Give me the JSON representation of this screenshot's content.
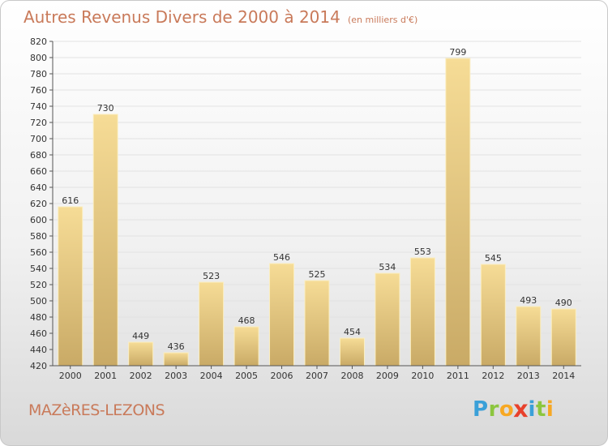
{
  "header": {
    "title": "Autres Revenus Divers de 2000 à 2014",
    "subtitle": "(en milliers d'€)"
  },
  "footer": {
    "commune": "MAZèRES-LEZONS",
    "brand": "Proxiti",
    "brand_letters": [
      {
        "ch": "P",
        "color": "#3aa0d8"
      },
      {
        "ch": "r",
        "color": "#8cc63f"
      },
      {
        "ch": "o",
        "color": "#f7a823"
      },
      {
        "ch": "x",
        "color": "#e8412c"
      },
      {
        "ch": "i",
        "color": "#3aa0d8"
      },
      {
        "ch": "t",
        "color": "#8cc63f"
      },
      {
        "ch": "i",
        "color": "#f7a823"
      }
    ]
  },
  "colors": {
    "title": "#c97a5a",
    "bar_top": "#f6dc96",
    "bar_bottom": "#c9aa66",
    "grid": "#e2e2e2",
    "axis": "#555555",
    "text": "#333333"
  },
  "chart_data": {
    "type": "bar",
    "categories": [
      "2000",
      "2001",
      "2002",
      "2003",
      "2004",
      "2005",
      "2006",
      "2007",
      "2008",
      "2009",
      "2010",
      "2011",
      "2012",
      "2013",
      "2014"
    ],
    "values": [
      616,
      730,
      449,
      436,
      523,
      468,
      546,
      525,
      454,
      534,
      553,
      799,
      545,
      493,
      490
    ],
    "data_labels": [
      "616",
      "730",
      "449",
      "436",
      "523",
      "468",
      "546",
      "525",
      "454",
      "534",
      "553",
      "799",
      "545",
      "493",
      "490"
    ],
    "ylim": [
      420,
      820
    ],
    "yticks": [
      "420",
      "440",
      "460",
      "480",
      "500",
      "520",
      "540",
      "560",
      "580",
      "600",
      "620",
      "640",
      "660",
      "680",
      "700",
      "720",
      "740",
      "760",
      "780",
      "800",
      "820"
    ],
    "grid": true,
    "legend": "none"
  }
}
